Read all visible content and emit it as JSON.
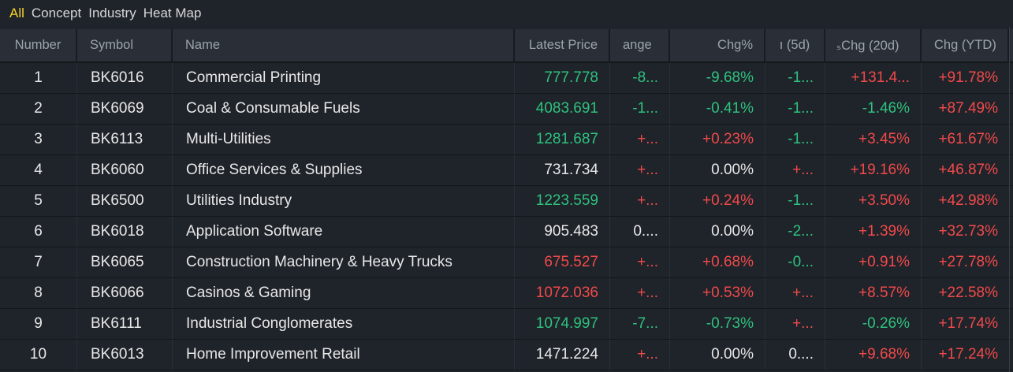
{
  "tabs": [
    {
      "label": "All",
      "active": true
    },
    {
      "label": "Concept",
      "active": false
    },
    {
      "label": "Industry",
      "active": false
    },
    {
      "label": "Heat Map",
      "active": false
    }
  ],
  "columns": {
    "number": "Number",
    "symbol": "Symbol",
    "name": "Name",
    "latest_price": "Latest Price",
    "change": "ange",
    "chg_pct": "Chg%",
    "chg_5d": "ı (5d)",
    "chg_20d": "ₛChg (20d)",
    "chg_ytd": "Chg (YTD)"
  },
  "colors": {
    "up": "#f04a4a",
    "down": "#2ec27e",
    "flat": "#e8e8e8",
    "active_tab": "#f6d32a"
  },
  "rows": [
    {
      "number": "1",
      "symbol": "BK6016",
      "name": "Commercial Printing",
      "price": "777.778",
      "price_dir": "down",
      "change": "-8...",
      "change_dir": "down",
      "pct": "-9.68%",
      "pct_dir": "down",
      "d5": "-1...",
      "d5_dir": "down",
      "d20": "+131.4...",
      "d20_dir": "up",
      "ytd": "+91.78%",
      "ytd_dir": "up"
    },
    {
      "number": "2",
      "symbol": "BK6069",
      "name": "Coal & Consumable Fuels",
      "price": "4083.691",
      "price_dir": "down",
      "change": "-1...",
      "change_dir": "down",
      "pct": "-0.41%",
      "pct_dir": "down",
      "d5": "-1...",
      "d5_dir": "down",
      "d20": "-1.46%",
      "d20_dir": "down",
      "ytd": "+87.49%",
      "ytd_dir": "up"
    },
    {
      "number": "3",
      "symbol": "BK6113",
      "name": "Multi-Utilities",
      "price": "1281.687",
      "price_dir": "down",
      "change": "+...",
      "change_dir": "up",
      "pct": "+0.23%",
      "pct_dir": "up",
      "d5": "-1...",
      "d5_dir": "down",
      "d20": "+3.45%",
      "d20_dir": "up",
      "ytd": "+61.67%",
      "ytd_dir": "up"
    },
    {
      "number": "4",
      "symbol": "BK6060",
      "name": "Office Services & Supplies",
      "price": "731.734",
      "price_dir": "flat",
      "change": "+...",
      "change_dir": "up",
      "pct": "0.00%",
      "pct_dir": "flat",
      "d5": "+...",
      "d5_dir": "up",
      "d20": "+19.16%",
      "d20_dir": "up",
      "ytd": "+46.87%",
      "ytd_dir": "up"
    },
    {
      "number": "5",
      "symbol": "BK6500",
      "name": "Utilities Industry",
      "price": "1223.559",
      "price_dir": "down",
      "change": "+...",
      "change_dir": "up",
      "pct": "+0.24%",
      "pct_dir": "up",
      "d5": "-1...",
      "d5_dir": "down",
      "d20": "+3.50%",
      "d20_dir": "up",
      "ytd": "+42.98%",
      "ytd_dir": "up"
    },
    {
      "number": "6",
      "symbol": "BK6018",
      "name": "Application Software",
      "price": "905.483",
      "price_dir": "flat",
      "change": "0....",
      "change_dir": "flat",
      "pct": "0.00%",
      "pct_dir": "flat",
      "d5": "-2...",
      "d5_dir": "down",
      "d20": "+1.39%",
      "d20_dir": "up",
      "ytd": "+32.73%",
      "ytd_dir": "up"
    },
    {
      "number": "7",
      "symbol": "BK6065",
      "name": "Construction Machinery & Heavy Trucks",
      "price": "675.527",
      "price_dir": "up",
      "change": "+...",
      "change_dir": "up",
      "pct": "+0.68%",
      "pct_dir": "up",
      "d5": "-0...",
      "d5_dir": "down",
      "d20": "+0.91%",
      "d20_dir": "up",
      "ytd": "+27.78%",
      "ytd_dir": "up"
    },
    {
      "number": "8",
      "symbol": "BK6066",
      "name": "Casinos & Gaming",
      "price": "1072.036",
      "price_dir": "up",
      "change": "+...",
      "change_dir": "up",
      "pct": "+0.53%",
      "pct_dir": "up",
      "d5": "+...",
      "d5_dir": "up",
      "d20": "+8.57%",
      "d20_dir": "up",
      "ytd": "+22.58%",
      "ytd_dir": "up"
    },
    {
      "number": "9",
      "symbol": "BK6111",
      "name": "Industrial Conglomerates",
      "price": "1074.997",
      "price_dir": "down",
      "change": "-7...",
      "change_dir": "down",
      "pct": "-0.73%",
      "pct_dir": "down",
      "d5": "+...",
      "d5_dir": "up",
      "d20": "-0.26%",
      "d20_dir": "down",
      "ytd": "+17.74%",
      "ytd_dir": "up"
    },
    {
      "number": "10",
      "symbol": "BK6013",
      "name": "Home Improvement Retail",
      "price": "1471.224",
      "price_dir": "flat",
      "change": "+...",
      "change_dir": "up",
      "pct": "0.00%",
      "pct_dir": "flat",
      "d5": "0....",
      "d5_dir": "flat",
      "d20": "+9.68%",
      "d20_dir": "up",
      "ytd": "+17.24%",
      "ytd_dir": "up"
    }
  ]
}
